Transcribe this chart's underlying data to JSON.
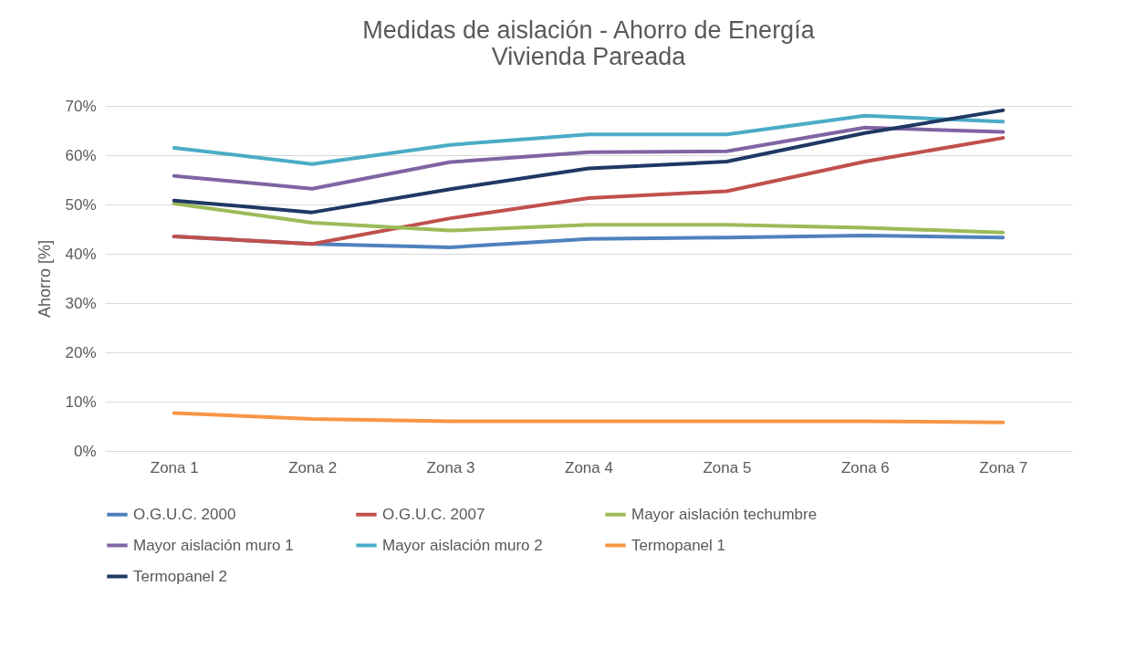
{
  "chart_data": {
    "type": "line",
    "title": [
      "Medidas de aislación - Ahorro de Energía",
      "Vivienda Pareada"
    ],
    "ylabel": "Ahorro [%]",
    "categories": [
      "Zona 1",
      "Zona 2",
      "Zona 3",
      "Zona 4",
      "Zona 5",
      "Zona 6",
      "Zona 7"
    ],
    "ylim": [
      0,
      70
    ],
    "yticks": [
      {
        "value": 0,
        "label": "0%"
      },
      {
        "value": 10,
        "label": "10%"
      },
      {
        "value": 20,
        "label": "20%"
      },
      {
        "value": 30,
        "label": "30%"
      },
      {
        "value": 40,
        "label": "40%"
      },
      {
        "value": 50,
        "label": "50%"
      },
      {
        "value": 60,
        "label": "60%"
      },
      {
        "value": 70,
        "label": "70%"
      }
    ],
    "grid": "y",
    "legend": "bottom",
    "marker": "none",
    "line_style": "solid",
    "series": [
      {
        "name": "O.G.U.C. 2000",
        "color": "#4f81bd",
        "values": [
          43.5,
          42,
          41.3,
          43,
          43.3,
          43.7,
          43.3
        ]
      },
      {
        "name": "O.G.U.C. 2007",
        "color": "#c0504d",
        "values": [
          43.5,
          42,
          47.2,
          51.3,
          52.7,
          58.7,
          63.5
        ]
      },
      {
        "name": "Mayor aislación techumbre",
        "color": "#9bbb59",
        "values": [
          50.2,
          46.3,
          44.7,
          45.9,
          45.9,
          45.3,
          44.3
        ]
      },
      {
        "name": "Mayor aislación muro 1",
        "color": "#8064a2",
        "values": [
          55.8,
          53.2,
          58.6,
          60.6,
          60.8,
          65.6,
          64.7
        ]
      },
      {
        "name": "Mayor aislación muro 2",
        "color": "#4bacc6",
        "values": [
          61.5,
          58.2,
          62.1,
          64.2,
          64.2,
          68,
          66.8
        ]
      },
      {
        "name": "Termopanel 1",
        "color": "#f79646",
        "values": [
          7.7,
          6.5,
          6,
          6,
          6,
          6,
          5.8
        ]
      },
      {
        "name": "Termopanel 2",
        "color": "#1f3864",
        "values": [
          50.8,
          48.4,
          53.1,
          57.3,
          58.7,
          64.5,
          69.1
        ]
      }
    ]
  }
}
